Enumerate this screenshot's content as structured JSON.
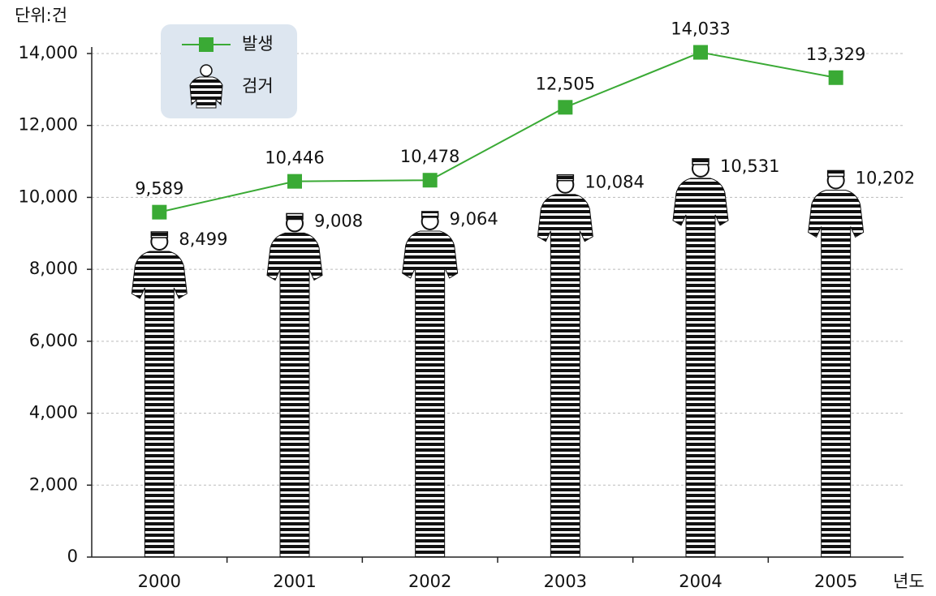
{
  "chart_data": {
    "type": "combo",
    "unit_label": "단위:건",
    "x_label": "년도",
    "categories": [
      "2000",
      "2001",
      "2002",
      "2003",
      "2004",
      "2005"
    ],
    "series": [
      {
        "name": "발생",
        "type": "line",
        "color": "#3aaa35",
        "values": [
          9589,
          10446,
          10478,
          12505,
          14033,
          13329
        ],
        "value_labels": [
          "9,589",
          "10,446",
          "10,478",
          "12,505",
          "14,033",
          "13,329"
        ]
      },
      {
        "name": "검거",
        "type": "pictogram",
        "color": "#111111",
        "label_color": "#e8203a",
        "values": [
          8499,
          9008,
          9064,
          10084,
          10531,
          10202
        ],
        "value_labels": [
          "8,499",
          "9,008",
          "9,064",
          "10,084",
          "10,531",
          "10,202"
        ]
      }
    ],
    "ylim": [
      0,
      14000
    ],
    "yticks": [
      0,
      {
        "value": 2000,
        "label": "2,000"
      },
      {
        "value": 4000,
        "label": "4,000"
      },
      {
        "value": 6000,
        "label": "6,000"
      },
      {
        "value": 8000,
        "label": "8,000"
      },
      {
        "value": 10000,
        "label": "10,000"
      },
      {
        "value": 12000,
        "label": "12,000"
      },
      {
        "value": 14000,
        "label": "14,000"
      }
    ],
    "grid": true,
    "legend": "upper left"
  }
}
